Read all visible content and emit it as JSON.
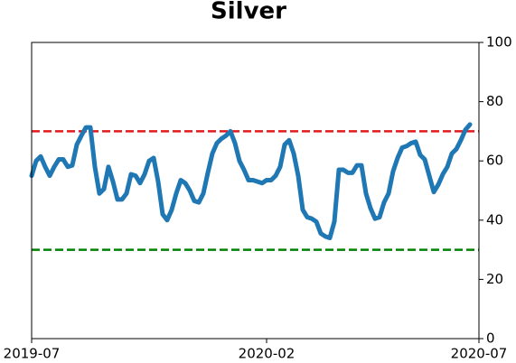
{
  "chart_data": {
    "type": "line",
    "title": "Silver",
    "x": [
      0,
      1,
      2,
      3,
      4,
      5,
      6,
      7,
      8,
      9,
      10,
      11,
      12,
      13,
      14,
      15,
      16,
      17,
      18,
      19,
      20,
      21,
      22,
      23,
      24,
      25,
      26,
      27,
      28,
      29,
      30,
      31,
      32,
      33,
      34,
      35,
      36,
      37,
      38,
      39,
      40,
      41,
      42,
      43,
      44,
      45,
      46,
      47,
      48,
      49,
      50,
      51,
      52,
      53,
      54,
      55,
      56,
      57,
      58,
      59,
      60,
      61,
      62,
      63,
      64,
      65,
      66,
      67,
      68,
      69,
      70,
      71,
      72,
      73,
      74,
      75,
      76,
      77,
      78,
      79,
      80,
      81,
      82,
      83,
      84,
      85,
      86,
      87,
      88,
      89,
      90,
      91,
      92,
      93,
      94,
      95,
      96,
      97
    ],
    "series": [
      {
        "color": "#1f77b4",
        "values": [
          55,
          60,
          61.5,
          58,
          55,
          58,
          60.5,
          60.5,
          58,
          58.5,
          65.5,
          68.5,
          71.3,
          71.3,
          58,
          49,
          50.5,
          58,
          53,
          47,
          47,
          49,
          55.5,
          55,
          52.5,
          55.5,
          60,
          61,
          53,
          42,
          40,
          43.5,
          49,
          53.5,
          52.5,
          50,
          46.5,
          46,
          49,
          56,
          62.5,
          66,
          67.5,
          68.5,
          70,
          66,
          60,
          57,
          53.5,
          53.5,
          53,
          52.5,
          53.5,
          53.5,
          55,
          58,
          65.5,
          67,
          62.5,
          55,
          43.5,
          41,
          40.5,
          39.5,
          35.5,
          34.5,
          34,
          39.5,
          57,
          57,
          56,
          56,
          58.5,
          58.5,
          49,
          44,
          40.5,
          41,
          46,
          49,
          56.5,
          61,
          64.5,
          65,
          66,
          66.5,
          62,
          60.5,
          55,
          49.5,
          52,
          55.5,
          58,
          62.5,
          64,
          67,
          70.5,
          72.3
        ]
      }
    ],
    "hlines": [
      {
        "value": 70,
        "color": "#e31a1c"
      },
      {
        "value": 30,
        "color": "#008000"
      }
    ],
    "xlim": [
      0,
      99
    ],
    "xticks": [
      {
        "value": 0,
        "label": "2019-07"
      },
      {
        "value": 52,
        "label": "2020-02"
      },
      {
        "value": 99,
        "label": "2020-07"
      }
    ],
    "ylim": [
      0,
      100
    ],
    "yticks": [
      0,
      20,
      40,
      60,
      80,
      100
    ],
    "y_axis_side": "right"
  }
}
